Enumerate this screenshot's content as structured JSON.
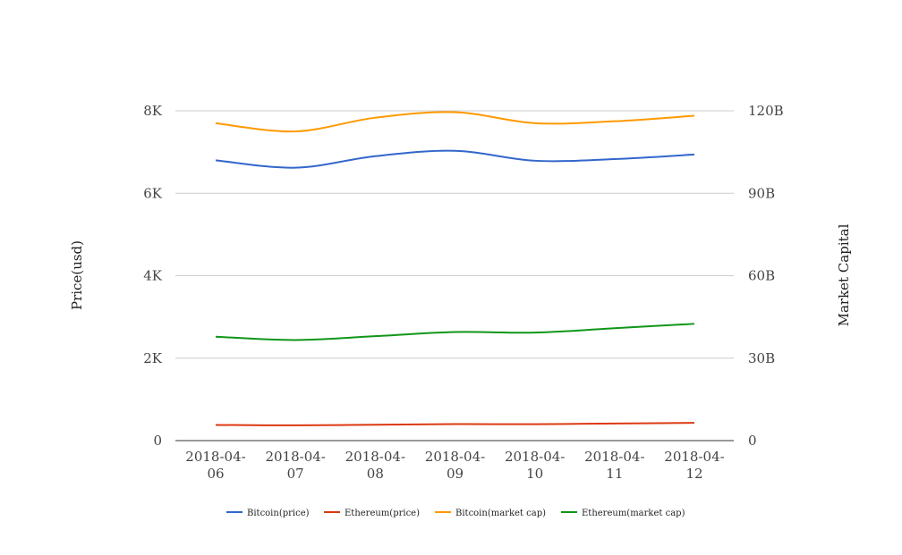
{
  "chart_data": {
    "type": "line",
    "title": "",
    "x_label": "",
    "y_label_left": "Price(usd)",
    "y_label_right": "Market Capital",
    "categories": [
      "2018-04-06",
      "2018-04-07",
      "2018-04-08",
      "2018-04-09",
      "2018-04-10",
      "2018-04-11",
      "2018-04-12"
    ],
    "category_lines": [
      [
        "2018-04-",
        "06"
      ],
      [
        "2018-04-",
        "07"
      ],
      [
        "2018-04-",
        "08"
      ],
      [
        "2018-04-",
        "09"
      ],
      [
        "2018-04-",
        "10"
      ],
      [
        "2018-04-",
        "11"
      ],
      [
        "2018-04-",
        "12"
      ]
    ],
    "y_left": {
      "min": 0,
      "max": 8000,
      "ticks": [
        0,
        2000,
        4000,
        6000,
        8000
      ],
      "tick_labels": [
        "0",
        "2K",
        "4K",
        "6K",
        "8K"
      ]
    },
    "y_right": {
      "min": 0,
      "max": 120000000000,
      "ticks": [
        0,
        30000000000,
        60000000000,
        90000000000,
        120000000000
      ],
      "tick_labels": [
        "0",
        "30B",
        "60B",
        "90B",
        "120B"
      ]
    },
    "grid": true,
    "legend_position": "bottom",
    "series": [
      {
        "name": "Bitcoin(price)",
        "axis": "left",
        "color": "#3366cc",
        "values": [
          6800,
          6620,
          6900,
          7030,
          6790,
          6830,
          6940
        ]
      },
      {
        "name": "Ethereum(price)",
        "axis": "left",
        "color": "#dc3912",
        "values": [
          380,
          370,
          385,
          400,
          398,
          415,
          430
        ]
      },
      {
        "name": "Bitcoin(market cap)",
        "axis": "right",
        "color": "#ff9900",
        "values": [
          115500000000,
          112500000000,
          117500000000,
          119500000000,
          115500000000,
          116200000000,
          118200000000
        ]
      },
      {
        "name": "Ethereum(market cap)",
        "axis": "right",
        "color": "#109618",
        "values": [
          37800000000,
          36600000000,
          38000000000,
          39500000000,
          39300000000,
          40900000000,
          42500000000
        ]
      }
    ]
  }
}
